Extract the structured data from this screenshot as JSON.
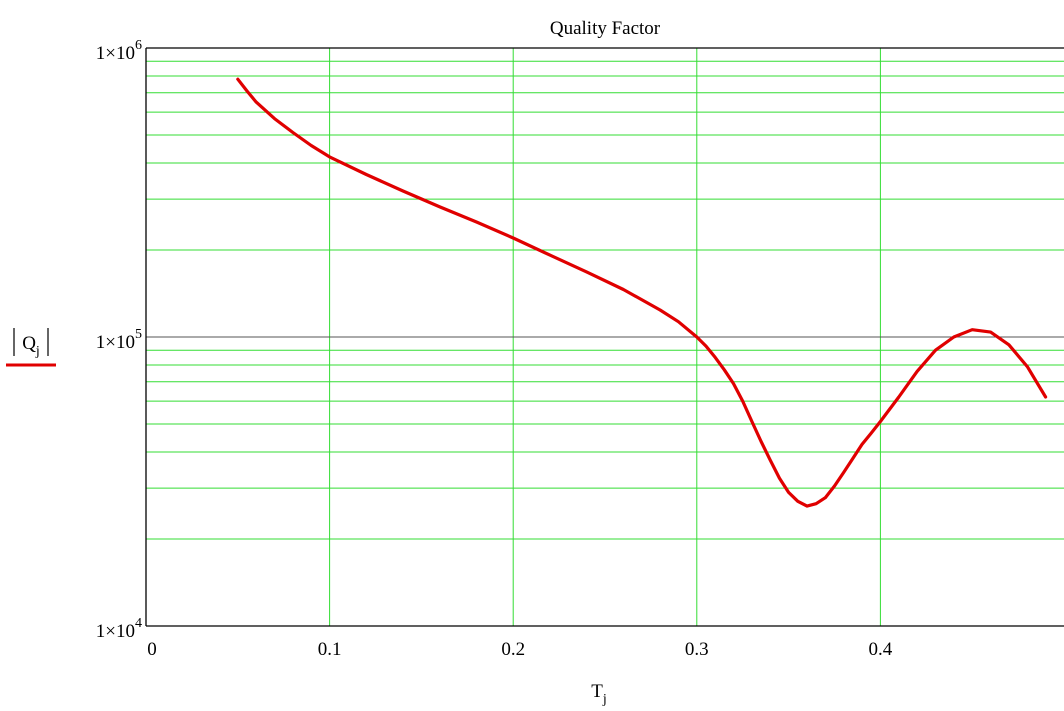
{
  "chart_data": {
    "type": "line",
    "title": "Quality Factor",
    "xlabel": {
      "base": "T",
      "sub": "j"
    },
    "ylabel": {
      "base": "Q",
      "sub": "j",
      "abs": true
    },
    "y_scale": "log",
    "xlim": [
      0,
      0.5
    ],
    "ylim": [
      10000,
      1000000
    ],
    "x_ticks": [
      0,
      0.1,
      0.2,
      0.3,
      0.4
    ],
    "x_tick_labels": [
      "0",
      "0.1",
      "0.2",
      "0.3",
      "0.4"
    ],
    "y_ticks": [
      10000,
      100000,
      1000000
    ],
    "y_tick_labels": [
      {
        "base": "1×10",
        "exp": "4"
      },
      {
        "base": "1×10",
        "exp": "5"
      },
      {
        "base": "1×10",
        "exp": "6"
      }
    ],
    "grid": true,
    "colors": {
      "grid": "#33dd33",
      "series": "#e00000",
      "axis": "#000000",
      "major_line": "#555555"
    },
    "series": [
      {
        "x": [
          0.05,
          0.055,
          0.06,
          0.07,
          0.08,
          0.09,
          0.1,
          0.12,
          0.14,
          0.16,
          0.18,
          0.2,
          0.22,
          0.24,
          0.26,
          0.28,
          0.29,
          0.3,
          0.305,
          0.31,
          0.315,
          0.32,
          0.325,
          0.33,
          0.335,
          0.34,
          0.345,
          0.35,
          0.355,
          0.36,
          0.365,
          0.37,
          0.375,
          0.38,
          0.385,
          0.39,
          0.395,
          0.4,
          0.41,
          0.42,
          0.43,
          0.44,
          0.45,
          0.46,
          0.47,
          0.48,
          0.49
        ],
        "y": [
          780000,
          710000,
          650000,
          570000,
          510000,
          460000,
          420000,
          365000,
          320000,
          282000,
          250000,
          220000,
          192000,
          168000,
          146000,
          124000,
          113000,
          100000,
          93000,
          85000,
          77000,
          69000,
          60000,
          51000,
          43500,
          37500,
          32500,
          29000,
          27000,
          26000,
          26500,
          27800,
          30500,
          34000,
          38000,
          42500,
          46500,
          51000,
          62000,
          76000,
          90000,
          100000,
          106000,
          104000,
          94000,
          79000,
          62000
        ]
      }
    ]
  }
}
